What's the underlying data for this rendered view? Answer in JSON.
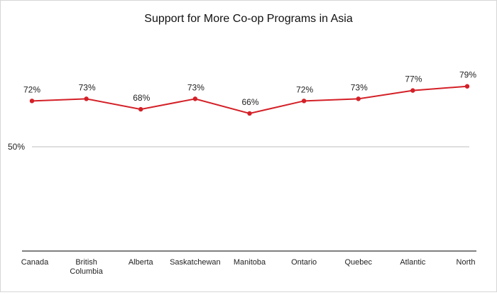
{
  "chart_data": {
    "type": "line",
    "title": "Support for More Co-op Programs in Asia",
    "categories": [
      "Canada",
      "British Columbia",
      "Alberta",
      "Saskatchewan",
      "Manitoba",
      "Ontario",
      "Quebec",
      "Atlantic",
      "North"
    ],
    "values": [
      72,
      73,
      68,
      73,
      66,
      72,
      73,
      77,
      79
    ],
    "value_labels": [
      "72%",
      "73%",
      "68%",
      "73%",
      "66%",
      "72%",
      "73%",
      "77%",
      "79%"
    ],
    "reference_line": {
      "value": 50,
      "label": "50%"
    },
    "ylim": [
      0,
      100
    ],
    "grid": false,
    "legend": "none",
    "colors": {
      "series": "#d42027",
      "reference": "#bfbfbf",
      "axis": "#333333",
      "text": "#222222"
    }
  }
}
